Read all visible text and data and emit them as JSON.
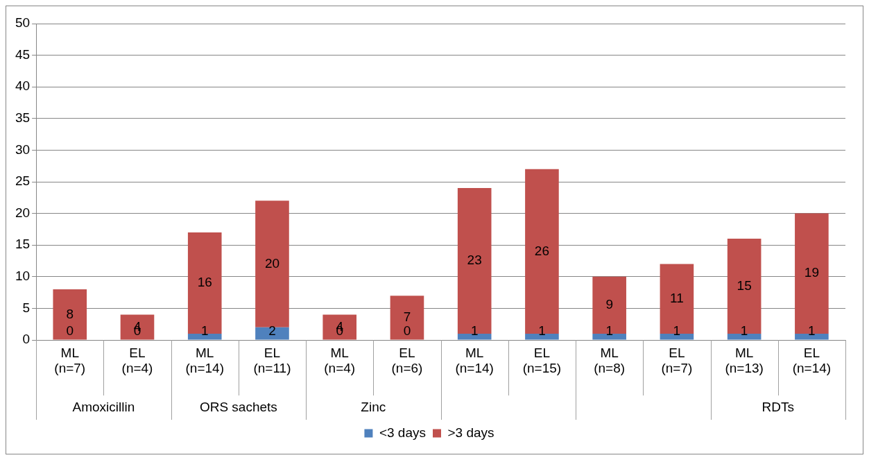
{
  "chart_data": {
    "type": "bar",
    "stacked": true,
    "categories": [
      "ML (n=7)",
      "EL (n=4)",
      "ML (n=14)",
      "EL (n=11)",
      "ML (n=4)",
      "EL (n=6)",
      "ML (n=14)",
      "EL (n=15)",
      "ML (n=8)",
      "EL (n=7)",
      "ML (n=13)",
      "EL (n=14)"
    ],
    "series": [
      {
        "name": "<3 days",
        "color": "#4f81bd",
        "values": [
          0,
          0,
          1,
          2,
          0,
          0,
          1,
          1,
          1,
          1,
          1,
          1
        ]
      },
      {
        "name": ">3 days",
        "color": "#c0504d",
        "values": [
          8,
          4,
          16,
          20,
          4,
          7,
          23,
          26,
          9,
          11,
          15,
          19
        ]
      }
    ],
    "ylim": [
      0,
      50
    ],
    "yticks": [
      0,
      5,
      10,
      15,
      20,
      25,
      30,
      35,
      40,
      45,
      50
    ],
    "grid": "y",
    "legend": "bottom",
    "data_labels": true,
    "annotations": [
      "Amoxicillin",
      "ORS sachets",
      "Zinc",
      null,
      null,
      "RDTs"
    ]
  }
}
